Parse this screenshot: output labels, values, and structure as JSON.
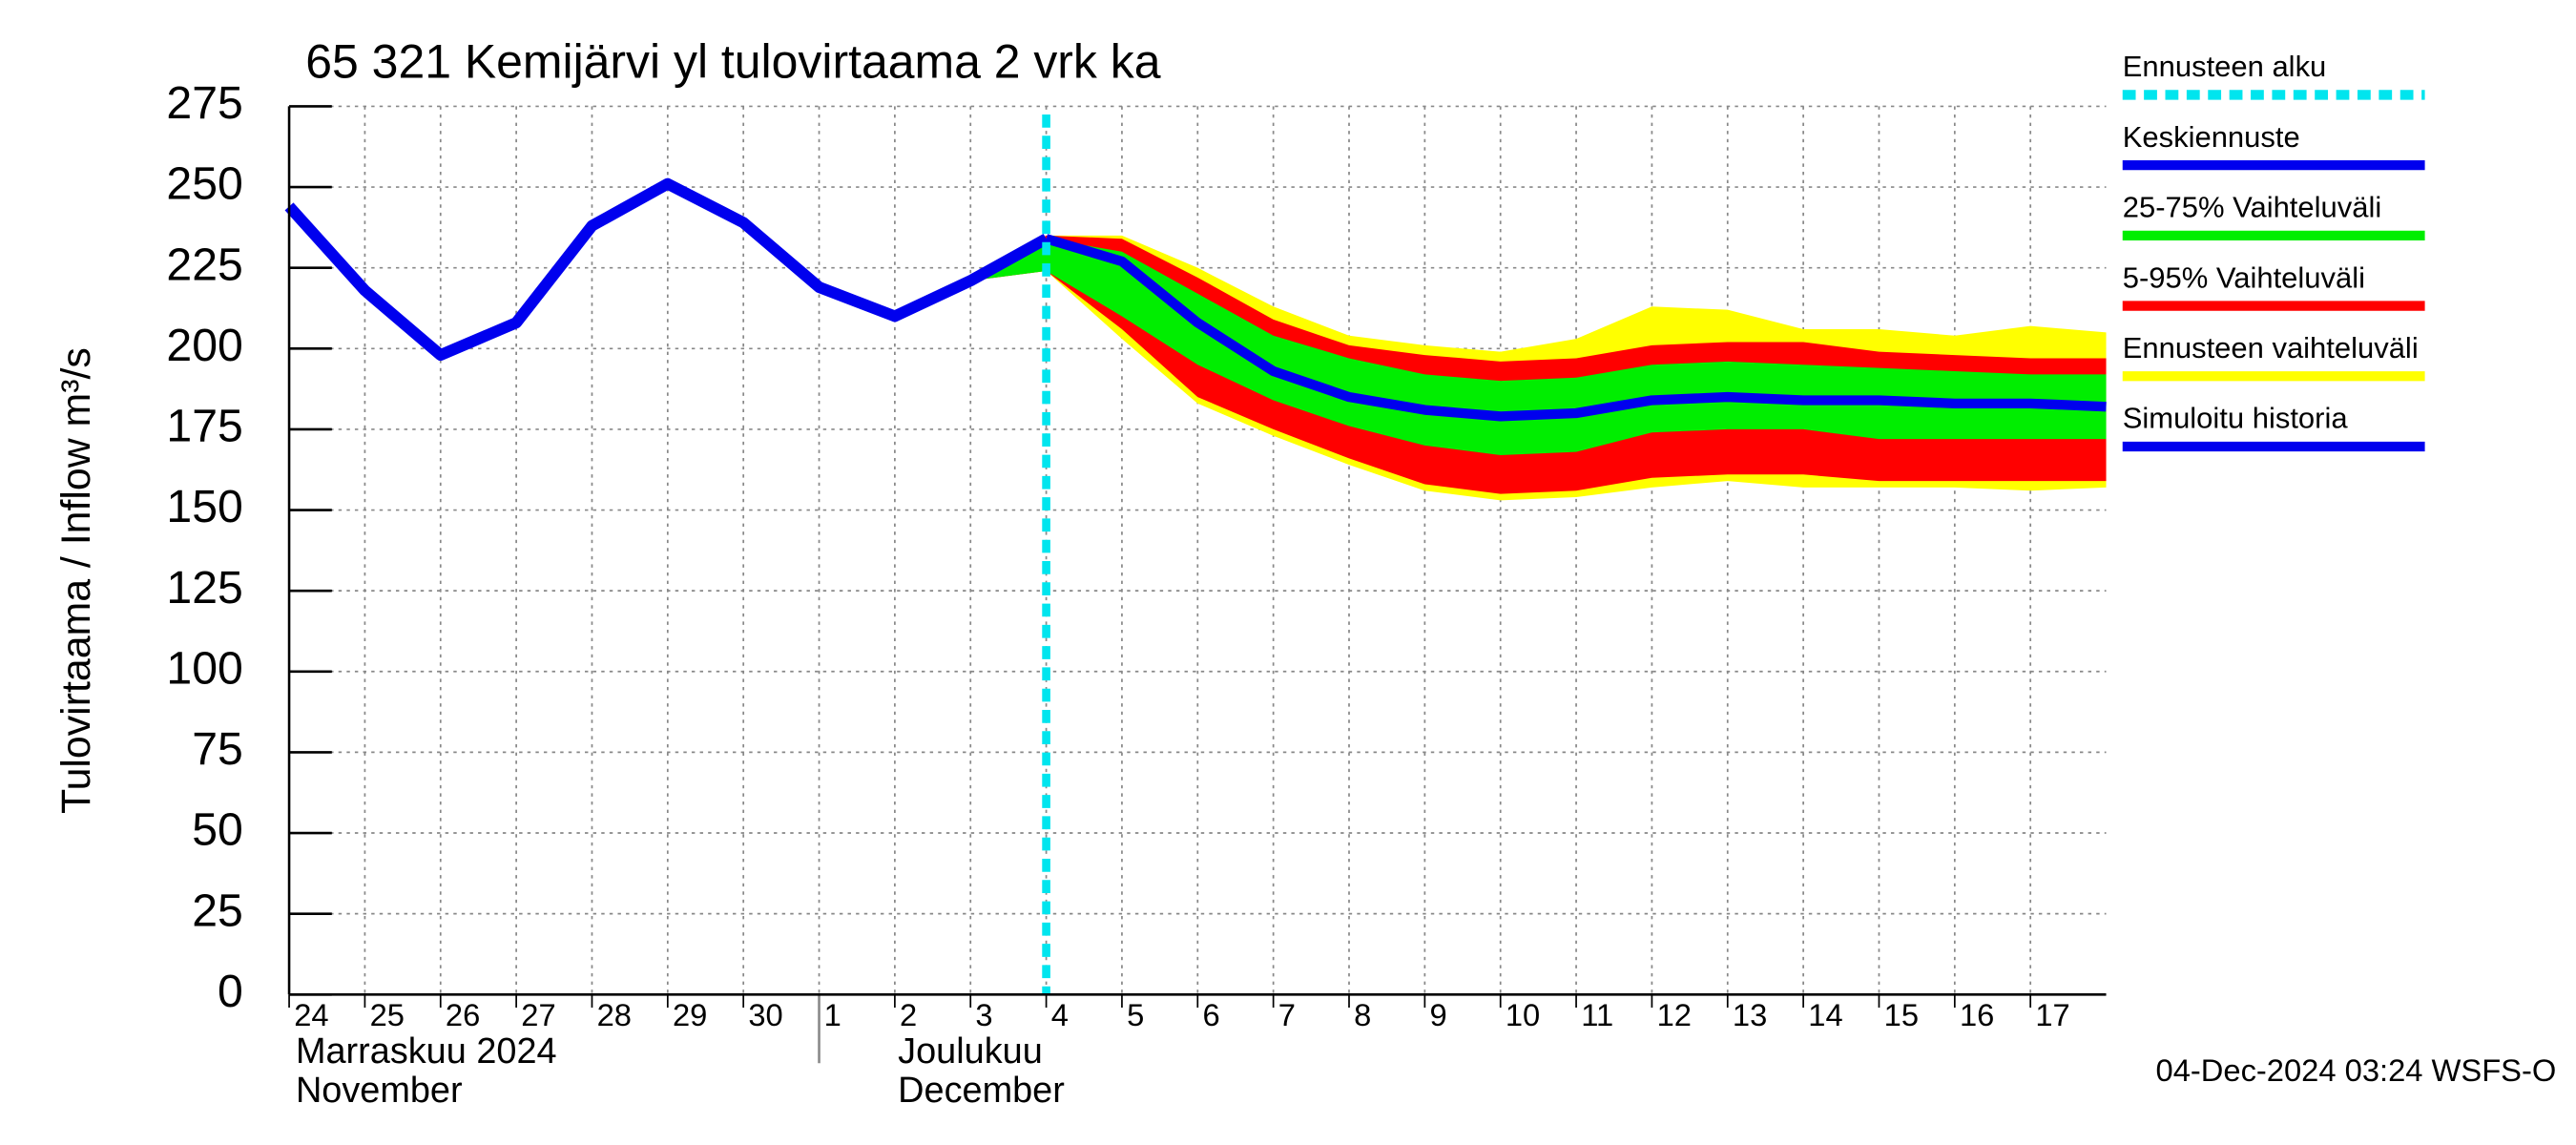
{
  "chart_data": {
    "type": "line",
    "title": "65 321 Kemijärvi yl tulovirtaama 2 vrk ka",
    "y_label": "Tulovirtaama / Inflow    m³/s",
    "x": [
      "2024-11-24",
      "2024-11-25",
      "2024-11-26",
      "2024-11-27",
      "2024-11-28",
      "2024-11-29",
      "2024-11-30",
      "2024-12-01",
      "2024-12-02",
      "2024-12-03",
      "2024-12-04",
      "2024-12-05",
      "2024-12-06",
      "2024-12-07",
      "2024-12-08",
      "2024-12-09",
      "2024-12-10",
      "2024-12-11",
      "2024-12-12",
      "2024-12-13",
      "2024-12-14",
      "2024-12-15",
      "2024-12-16",
      "2024-12-17",
      "2024-12-18"
    ],
    "xlim": [
      "2024-11-24",
      "2024-12-18"
    ],
    "xticks": [
      {
        "value": "2024-11-24",
        "label": "24"
      },
      {
        "value": "2024-11-25",
        "label": "25"
      },
      {
        "value": "2024-11-26",
        "label": "26"
      },
      {
        "value": "2024-11-27",
        "label": "27"
      },
      {
        "value": "2024-11-28",
        "label": "28"
      },
      {
        "value": "2024-11-29",
        "label": "29"
      },
      {
        "value": "2024-11-30",
        "label": "30"
      },
      {
        "value": "2024-12-01",
        "label": "1"
      },
      {
        "value": "2024-12-02",
        "label": "2"
      },
      {
        "value": "2024-12-03",
        "label": "3"
      },
      {
        "value": "2024-12-04",
        "label": "4"
      },
      {
        "value": "2024-12-05",
        "label": "5"
      },
      {
        "value": "2024-12-06",
        "label": "6"
      },
      {
        "value": "2024-12-07",
        "label": "7"
      },
      {
        "value": "2024-12-08",
        "label": "8"
      },
      {
        "value": "2024-12-09",
        "label": "9"
      },
      {
        "value": "2024-12-10",
        "label": "10"
      },
      {
        "value": "2024-12-11",
        "label": "11"
      },
      {
        "value": "2024-12-12",
        "label": "12"
      },
      {
        "value": "2024-12-13",
        "label": "13"
      },
      {
        "value": "2024-12-14",
        "label": "14"
      },
      {
        "value": "2024-12-15",
        "label": "15"
      },
      {
        "value": "2024-12-16",
        "label": "16"
      },
      {
        "value": "2024-12-17",
        "label": "17"
      }
    ],
    "months": [
      {
        "value": "2024-11-24",
        "label_fi": "Marraskuu 2024",
        "label_en": "November"
      },
      {
        "value": "2024-12-01",
        "label_fi": "Joulukuu",
        "label_en": "December"
      }
    ],
    "ylim": [
      0,
      275
    ],
    "yticks": [
      0,
      25,
      50,
      75,
      100,
      125,
      150,
      175,
      200,
      225,
      250,
      275
    ],
    "grid": true,
    "forecast_start": {
      "name": "Ennusteen alku",
      "value": "2024-12-04",
      "color": "#00e5ee"
    },
    "bands": [
      {
        "name": "Ennusteen vaihteluväli",
        "color": "#ffff00",
        "lower": [
          null,
          null,
          null,
          null,
          null,
          null,
          null,
          null,
          null,
          221,
          224,
          203,
          183,
          173,
          164,
          156,
          153,
          154,
          157,
          159,
          157,
          157,
          157,
          156,
          157
        ],
        "upper": [
          null,
          null,
          null,
          null,
          null,
          null,
          null,
          null,
          null,
          221,
          235,
          235,
          225,
          213,
          204,
          201,
          199,
          203,
          213,
          212,
          206,
          206,
          204,
          207,
          205
        ]
      },
      {
        "name": "5-95% Vaihteluväli",
        "color": "#ff0000",
        "lower": [
          null,
          null,
          null,
          null,
          null,
          null,
          null,
          null,
          null,
          221,
          224,
          206,
          185,
          175,
          166,
          158,
          155,
          156,
          160,
          161,
          161,
          159,
          159,
          159,
          159
        ],
        "upper": [
          null,
          null,
          null,
          null,
          null,
          null,
          null,
          null,
          null,
          221,
          235,
          234,
          222,
          209,
          201,
          198,
          196,
          197,
          201,
          202,
          202,
          199,
          198,
          197,
          197
        ]
      },
      {
        "name": "25-75% Vaihteluväli",
        "color": "#00ee00",
        "lower": [
          null,
          null,
          null,
          null,
          null,
          null,
          null,
          null,
          null,
          221,
          224,
          210,
          195,
          184,
          176,
          170,
          167,
          168,
          174,
          175,
          175,
          172,
          172,
          172,
          172
        ],
        "upper": [
          null,
          null,
          null,
          null,
          null,
          null,
          null,
          null,
          null,
          221,
          234,
          230,
          217,
          204,
          197,
          192,
          190,
          191,
          195,
          196,
          195,
          194,
          193,
          192,
          192
        ]
      }
    ],
    "series": [
      {
        "name": "Simuloitu historia",
        "color": "#0000ee",
        "values": [
          244,
          218,
          198,
          208,
          238,
          251,
          239,
          219,
          210,
          221,
          234,
          null,
          null,
          null,
          null,
          null,
          null,
          null,
          null,
          null,
          null,
          null,
          null,
          null,
          null
        ]
      },
      {
        "name": "Keskiennuste",
        "color": "#0000ee",
        "values": [
          null,
          null,
          null,
          null,
          null,
          null,
          null,
          null,
          null,
          null,
          234,
          227,
          208,
          193,
          185,
          181,
          179,
          180,
          184,
          185,
          184,
          184,
          183,
          183,
          182
        ]
      }
    ],
    "footer": "04-Dec-2024 03:24 WSFS-O"
  }
}
